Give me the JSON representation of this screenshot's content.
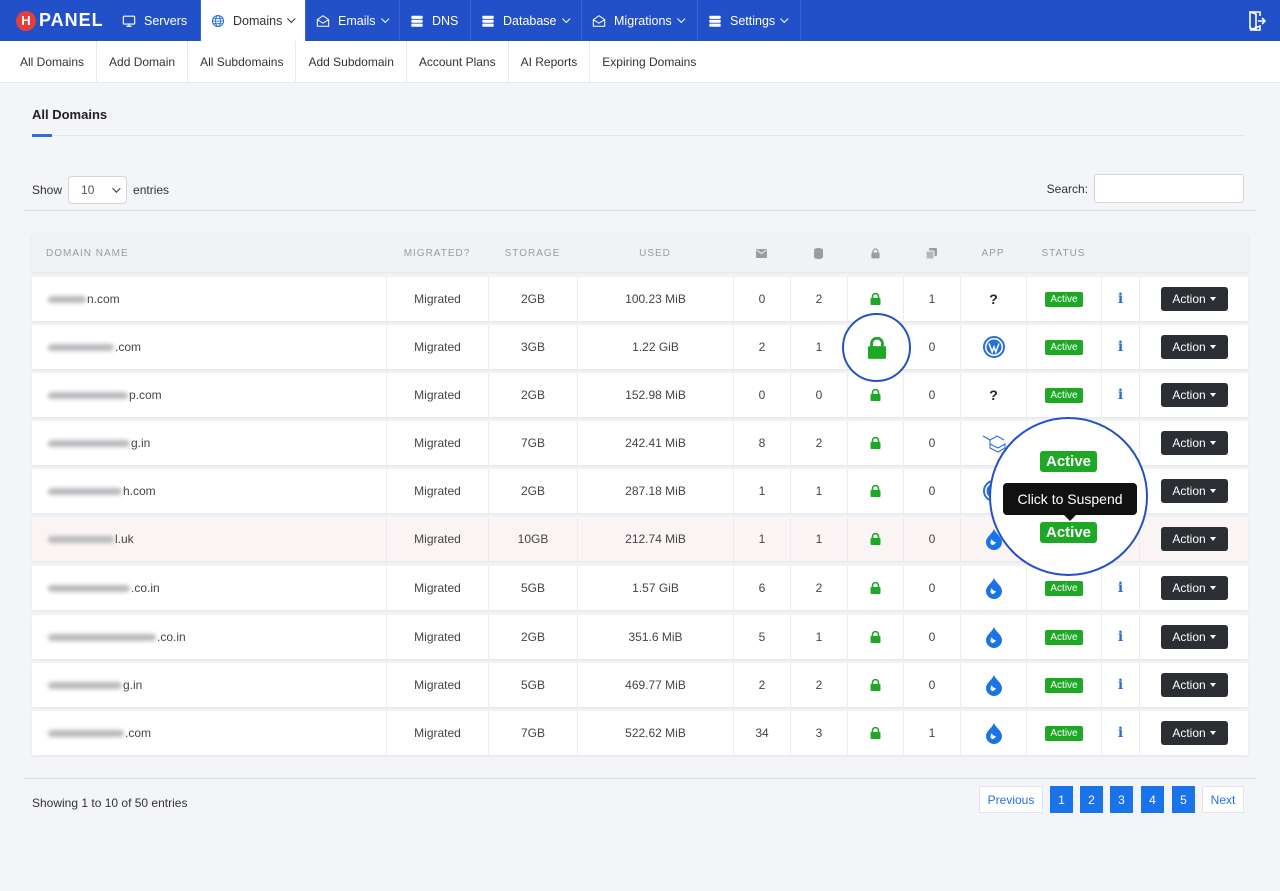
{
  "brand": {
    "badge": "H",
    "name": "PANEL"
  },
  "nav": [
    {
      "label": "Servers",
      "icon": "monitor-icon",
      "caret": false
    },
    {
      "label": "Domains",
      "icon": "globe-icon",
      "caret": true,
      "active": true
    },
    {
      "label": "Emails",
      "icon": "mail-icon",
      "caret": true
    },
    {
      "label": "DNS",
      "icon": "dns-server-icon",
      "caret": false
    },
    {
      "label": "Database",
      "icon": "database-server-icon",
      "caret": true
    },
    {
      "label": "Migrations",
      "icon": "envelope-open-icon",
      "caret": true
    },
    {
      "label": "Settings",
      "icon": "settings-server-icon",
      "caret": true
    }
  ],
  "subnav": [
    "All Domains",
    "Add Domain",
    "All Subdomains",
    "Add Subdomain",
    "Account Plans",
    "AI Reports",
    "Expiring Domains"
  ],
  "page": {
    "title": "All Domains"
  },
  "controls": {
    "show_label": "Show",
    "entries_value": "10",
    "entries_label": "entries",
    "search_label": "Search:"
  },
  "table": {
    "headers": {
      "domain": "DOMAIN NAME",
      "migrated": "MIGRATED?",
      "storage": "STORAGE",
      "used": "USED",
      "app": "APP",
      "status": "STATUS"
    },
    "header_icons": [
      "envelope-icon",
      "database-icon",
      "lock-icon",
      "copy-icon"
    ],
    "rows": [
      {
        "domain": "n.com",
        "migrated": "Migrated",
        "storage": "2GB",
        "used": "100.23 MiB",
        "emails": "0",
        "dbs": "2",
        "ftp": "1",
        "app": "unknown",
        "status": "Active",
        "action": "Action"
      },
      {
        "domain": ".com",
        "migrated": "Migrated",
        "storage": "3GB",
        "used": "1.22 GiB",
        "emails": "2",
        "dbs": "1",
        "ftp": "0",
        "app": "wordpress",
        "status": "Active",
        "action": "Action"
      },
      {
        "domain": "p.com",
        "migrated": "Migrated",
        "storage": "2GB",
        "used": "152.98 MiB",
        "emails": "0",
        "dbs": "0",
        "ftp": "0",
        "app": "unknown",
        "status": "Active",
        "action": "Action"
      },
      {
        "domain": "g.in",
        "migrated": "Migrated",
        "storage": "7GB",
        "used": "242.41 MiB",
        "emails": "8",
        "dbs": "2",
        "ftp": "0",
        "app": "laravel",
        "status": "Active",
        "action": "Action"
      },
      {
        "domain": "h.com",
        "migrated": "Migrated",
        "storage": "2GB",
        "used": "287.18 MiB",
        "emails": "1",
        "dbs": "1",
        "ftp": "0",
        "app": "wordpress",
        "status": "Active",
        "action": "Action"
      },
      {
        "domain": "l.uk",
        "migrated": "Migrated",
        "storage": "10GB",
        "used": "212.74 MiB",
        "emails": "1",
        "dbs": "1",
        "ftp": "0",
        "app": "drop",
        "status": "Active",
        "action": "Action"
      },
      {
        "domain": ".co.in",
        "migrated": "Migrated",
        "storage": "5GB",
        "used": "1.57 GiB",
        "emails": "6",
        "dbs": "2",
        "ftp": "0",
        "app": "drop",
        "status": "Active",
        "action": "Action"
      },
      {
        "domain": ".co.in",
        "migrated": "Migrated",
        "storage": "2GB",
        "used": "351.6 MiB",
        "emails": "5",
        "dbs": "1",
        "ftp": "0",
        "app": "drop",
        "status": "Active",
        "action": "Action"
      },
      {
        "domain": "g.in",
        "migrated": "Migrated",
        "storage": "5GB",
        "used": "469.77 MiB",
        "emails": "2",
        "dbs": "2",
        "ftp": "0",
        "app": "drop",
        "status": "Active",
        "action": "Action"
      },
      {
        "domain": ".com",
        "migrated": "Migrated",
        "storage": "7GB",
        "used": "522.62 MiB",
        "emails": "34",
        "dbs": "3",
        "ftp": "1",
        "app": "drop",
        "status": "Active",
        "action": "Action"
      }
    ]
  },
  "footer": {
    "showing": "Showing 1 to 10 of 50 entries"
  },
  "pagination": {
    "previous": "Previous",
    "pages": [
      "1",
      "2",
      "3",
      "4",
      "5"
    ],
    "next": "Next"
  },
  "zoom": {
    "badge_top": "Active",
    "tooltip": "Click to Suspend",
    "badge_bottom": "Active"
  },
  "colors": {
    "nav": "#2250c9",
    "accent": "#1a73e8",
    "success": "#1ea826",
    "button": "#2b2e33"
  }
}
